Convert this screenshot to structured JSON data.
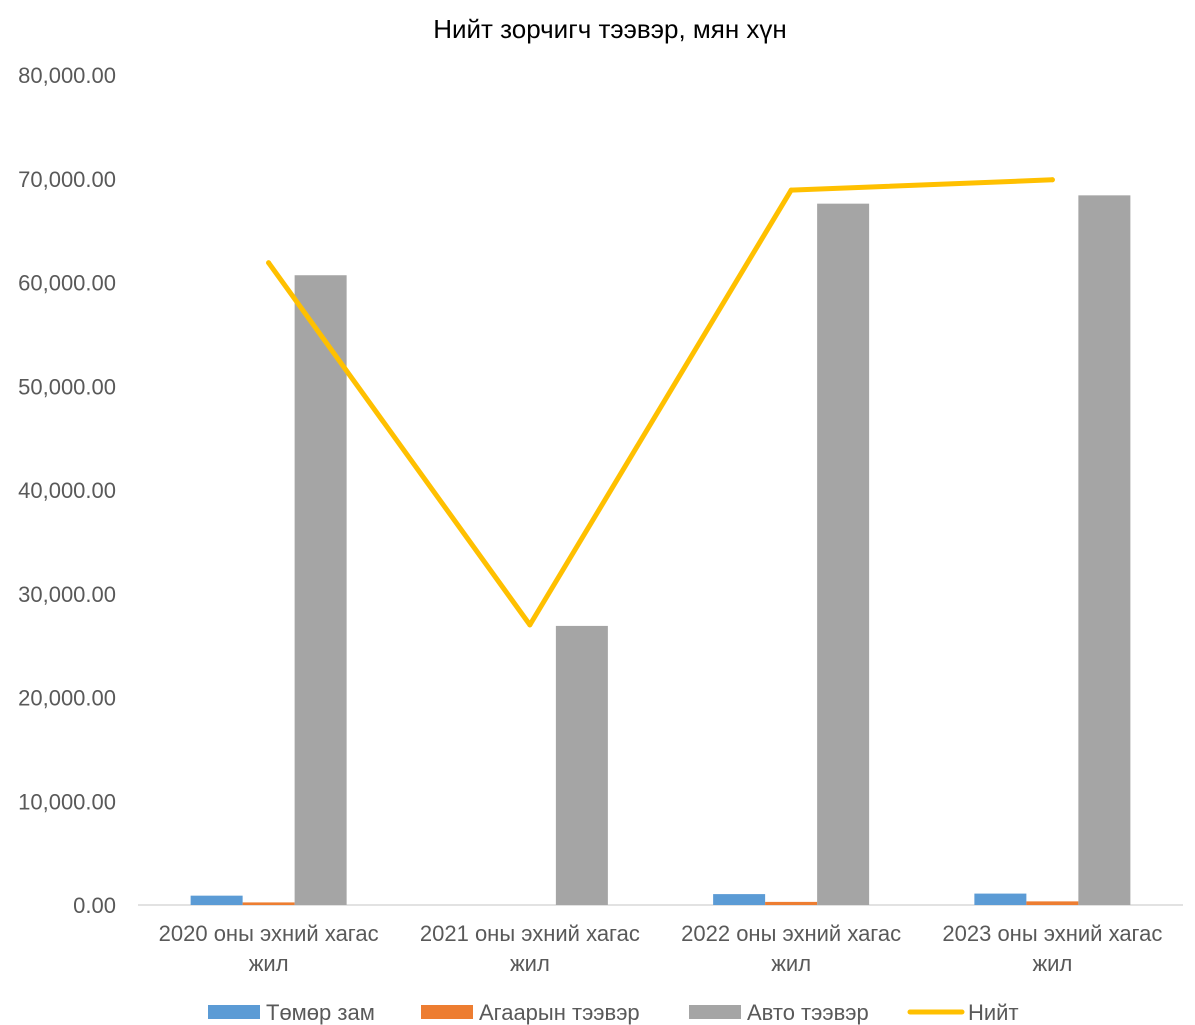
{
  "chart_data": {
    "type": "bar",
    "title": "Нийт зорчигч тээвэр, мян хүн",
    "categories": [
      "2020 оны эхний хагас жил",
      "2021 оны эхний хагас жил",
      "2022 оны эхний хагас жил",
      "2023 оны эхний хагас жил"
    ],
    "category_lines": [
      [
        "2020 оны эхний хагас",
        "жил"
      ],
      [
        "2021 оны эхний хагас",
        "жил"
      ],
      [
        "2022 оны эхний хагас",
        "жил"
      ],
      [
        "2023 оны эхний хагас",
        "жил"
      ]
    ],
    "series": [
      {
        "name": "Төмөр зам",
        "kind": "bar",
        "color": "#5B9BD5",
        "values": [
          900,
          0,
          1050,
          1100
        ]
      },
      {
        "name": "Агаарын тээвэр",
        "kind": "bar",
        "color": "#ED7D31",
        "values": [
          250,
          0,
          300,
          350
        ]
      },
      {
        "name": "Авто тээвэр",
        "kind": "bar",
        "color": "#A5A5A5",
        "values": [
          60700,
          26900,
          67600,
          68400
        ]
      },
      {
        "name": "Нийт",
        "kind": "line",
        "color": "#FFC000",
        "values": [
          61900,
          27000,
          68900,
          69900
        ]
      }
    ],
    "y_ticks": [
      "0.00",
      "10,000.00",
      "20,000.00",
      "30,000.00",
      "40,000.00",
      "50,000.00",
      "60,000.00",
      "70,000.00",
      "80,000.00"
    ],
    "ylim": [
      0,
      80000
    ],
    "xlabel": "",
    "ylabel": "",
    "grid": false,
    "legend_position": "bottom"
  }
}
